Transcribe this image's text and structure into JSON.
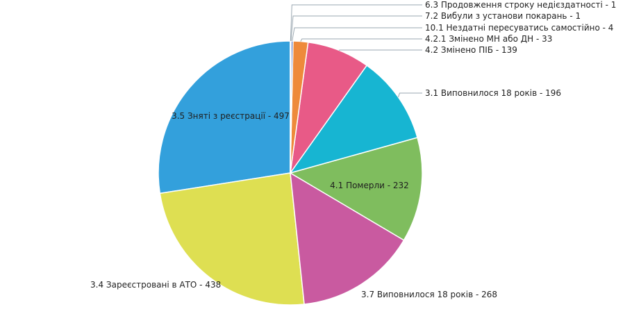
{
  "chart_data": {
    "type": "pie",
    "title": "",
    "slices": [
      {
        "label": "3.5 Зняті з реєстрації - 497",
        "value": 497,
        "color": "#33a0dc"
      },
      {
        "label": "3.4 Зареєстровані в АТО - 438",
        "value": 438,
        "color": "#dedf52"
      },
      {
        "label": "3.7 Виповнилося 18 років - 268",
        "value": 268,
        "color": "#c95aa0"
      },
      {
        "label": "4.1 Померли - 232",
        "value": 232,
        "color": "#7fbd5e"
      },
      {
        "label": "3.1 Виповнилося 18 років - 196",
        "value": 196,
        "color": "#17b5d2"
      },
      {
        "label": "4.2 Змінено ПІБ - 139",
        "value": 139,
        "color": "#e85a87"
      },
      {
        "label": "4.2.1 Змінено МН або ДН - 33",
        "value": 33,
        "color": "#ee8a3b"
      },
      {
        "label": "10.1 Нездатні пересуватись самостійно - 4",
        "value": 4,
        "color": "#3a5fbe"
      },
      {
        "label": "7.2 Вибули з установи покарань - 1",
        "value": 1,
        "color": "#e64b3b"
      },
      {
        "label": "6.3 Продовження строку недієздатності - 1",
        "value": 1,
        "color": "#8e5bb5"
      }
    ],
    "legend": "none"
  }
}
